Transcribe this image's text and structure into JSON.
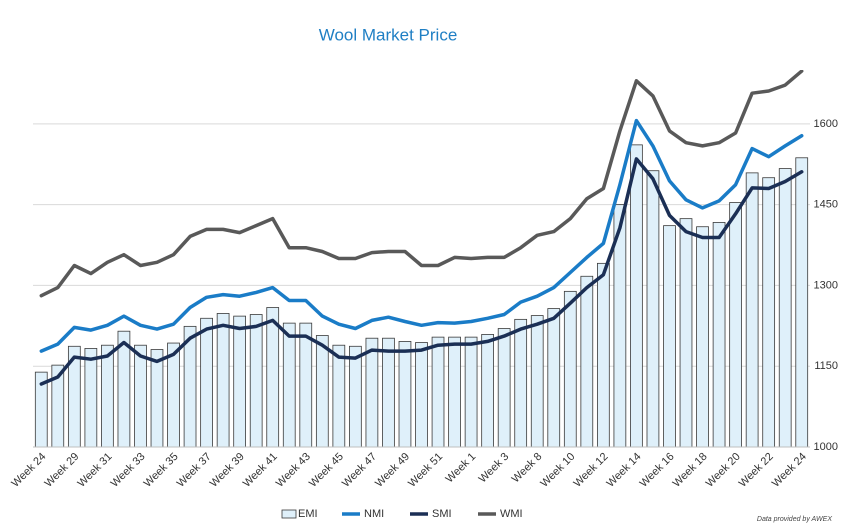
{
  "chart_data": {
    "type": "combo",
    "title": "Wool Market Price",
    "source": "Data provided by AWEX",
    "categories": [
      "Week 24",
      null,
      "Week 29",
      null,
      "Week 31",
      null,
      "Week 33",
      null,
      "Week 35",
      null,
      "Week 37",
      null,
      "Week 39",
      null,
      "Week 41",
      null,
      "Week 43",
      null,
      "Week 45",
      null,
      "Week 47",
      null,
      "Week 49",
      null,
      "Week 51",
      null,
      "Week 1",
      null,
      "Week 3",
      null,
      "Week 8",
      null,
      "Week 10",
      null,
      "Week 12",
      null,
      "Week 14",
      null,
      "Week 16",
      null,
      "Week 18",
      null,
      "Week 20",
      null,
      "Week 22",
      null,
      "Week 24"
    ],
    "series": [
      {
        "name": "EMI",
        "type": "bar",
        "color": "#dff0fa",
        "values": [
          1139,
          1152,
          1187,
          1183,
          1189,
          1215,
          1189,
          1181,
          1193,
          1224,
          1239,
          1248,
          1243,
          1246,
          1259,
          1230,
          1230,
          1207,
          1189,
          1187,
          1202,
          1202,
          1196,
          1194,
          1204,
          1204,
          1204,
          1209,
          1220,
          1237,
          1244,
          1257,
          1289,
          1317,
          1341,
          1450,
          1561,
          1513,
          1411,
          1424,
          1409,
          1417,
          1454,
          1509,
          1500,
          1517,
          1537
        ]
      },
      {
        "name": "NMI",
        "type": "line",
        "color": "#1a7cc7",
        "values": [
          1178,
          1191,
          1222,
          1217,
          1226,
          1243,
          1226,
          1219,
          1228,
          1259,
          1278,
          1283,
          1280,
          1287,
          1296,
          1272,
          1272,
          1243,
          1228,
          1220,
          1235,
          1241,
          1233,
          1226,
          1231,
          1230,
          1233,
          1239,
          1246,
          1269,
          1280,
          1296,
          1324,
          1352,
          1378,
          1487,
          1606,
          1559,
          1494,
          1459,
          1444,
          1457,
          1487,
          1554,
          1539,
          1559,
          1578
        ]
      },
      {
        "name": "SMI",
        "type": "line",
        "color": "#1b2f55",
        "values": [
          1117,
          1130,
          1167,
          1163,
          1169,
          1194,
          1169,
          1159,
          1172,
          1202,
          1219,
          1226,
          1220,
          1224,
          1235,
          1206,
          1206,
          1189,
          1167,
          1165,
          1180,
          1178,
          1178,
          1180,
          1189,
          1191,
          1191,
          1196,
          1206,
          1219,
          1228,
          1239,
          1267,
          1296,
          1320,
          1407,
          1535,
          1498,
          1430,
          1400,
          1389,
          1389,
          1433,
          1481,
          1480,
          1493,
          1511
        ]
      },
      {
        "name": "WMI",
        "type": "line",
        "color": "#595959",
        "values": [
          1281,
          1296,
          1337,
          1322,
          1343,
          1357,
          1337,
          1343,
          1357,
          1391,
          1404,
          1404,
          1398,
          1411,
          1424,
          1370,
          1370,
          1363,
          1350,
          1350,
          1361,
          1363,
          1363,
          1337,
          1337,
          1352,
          1350,
          1352,
          1352,
          1370,
          1393,
          1400,
          1424,
          1461,
          1480,
          1587,
          1680,
          1652,
          1587,
          1565,
          1559,
          1565,
          1583,
          1657,
          1661,
          1672,
          1698
        ]
      }
    ],
    "ylim": [
      1000,
      1700
    ],
    "yticks": [
      1000,
      1150,
      1300,
      1450,
      1600
    ],
    "grid": true,
    "legend": "bottom"
  }
}
